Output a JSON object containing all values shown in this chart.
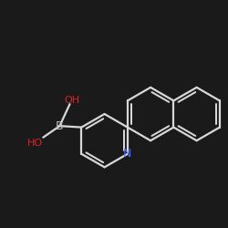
{
  "background_color": "#1a1a1a",
  "bond_color": "#d8d8d8",
  "bond_width": 1.6,
  "atom_labels": {
    "B": {
      "text": "B",
      "color": "#c0c0c0",
      "fontsize": 9
    },
    "N": {
      "text": "N",
      "color": "#4466ff",
      "fontsize": 9
    },
    "OH_top": {
      "text": "OH",
      "color": "#dd2222",
      "fontsize": 8
    },
    "HO_left": {
      "text": "HO",
      "color": "#dd2222",
      "fontsize": 8
    }
  },
  "figsize": [
    2.5,
    2.5
  ],
  "dpi": 100
}
